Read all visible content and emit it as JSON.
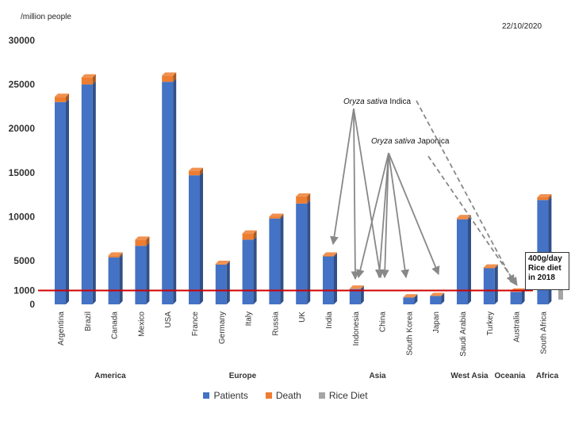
{
  "unit_label": "/million people",
  "date_label": "22/10/2020",
  "rice_box": {
    "line1": "400g/day",
    "line2": "Rice diet",
    "line3": "in 2018"
  },
  "annotations": {
    "indica": {
      "italic": "Oryza sativa",
      "rest": " Indica"
    },
    "japonica": {
      "italic": "Oryza sativa",
      "rest": " Japonica"
    }
  },
  "colors": {
    "patients": "#4472C4",
    "death": "#ED7D31",
    "rice": "#A5A5A5",
    "threshold": "#D00000",
    "arrow": "#888888"
  },
  "chart_data": {
    "type": "bar",
    "stacked": true,
    "categories": [
      "Argentina",
      "Brazil",
      "Canada",
      "Mexico",
      "USA",
      "France",
      "Germany",
      "Italy",
      "Russia",
      "UK",
      "India",
      "Indonesia",
      "China",
      "South Korea",
      "Japan",
      "Saudi Arabia",
      "Turkey",
      "Australia",
      "South Africa"
    ],
    "series": [
      {
        "name": "Patients",
        "values": [
          23000,
          25000,
          5400,
          6700,
          25300,
          14700,
          4500,
          7400,
          9800,
          11500,
          5500,
          1200,
          0,
          500,
          600,
          9700,
          4000,
          900,
          11900
        ]
      },
      {
        "name": "Death",
        "values": [
          600,
          800,
          200,
          700,
          700,
          500,
          100,
          700,
          200,
          800,
          100,
          50,
          0,
          10,
          10,
          150,
          100,
          30,
          300
        ]
      },
      {
        "name": "Rice Diet",
        "values": [
          0,
          0,
          0,
          0,
          0,
          0,
          0,
          0,
          0,
          0,
          0,
          0,
          0,
          0,
          0,
          0,
          0,
          0,
          0
        ]
      }
    ],
    "regions": [
      {
        "name": "America",
        "from": 0,
        "to": 4
      },
      {
        "name": "Europe",
        "from": 5,
        "to": 9
      },
      {
        "name": "Asia",
        "from": 10,
        "to": 14
      },
      {
        "name": "West Asia",
        "from": 15,
        "to": 16
      },
      {
        "name": "Oceania",
        "from": 17,
        "to": 17
      },
      {
        "name": "Africa",
        "from": 18,
        "to": 18
      }
    ],
    "y_ticks": [
      0,
      1000,
      5000,
      10000,
      15000,
      20000,
      25000,
      30000
    ],
    "ylim": [
      0,
      30000
    ],
    "threshold": 1000,
    "grid": false,
    "legend_position": "bottom"
  }
}
